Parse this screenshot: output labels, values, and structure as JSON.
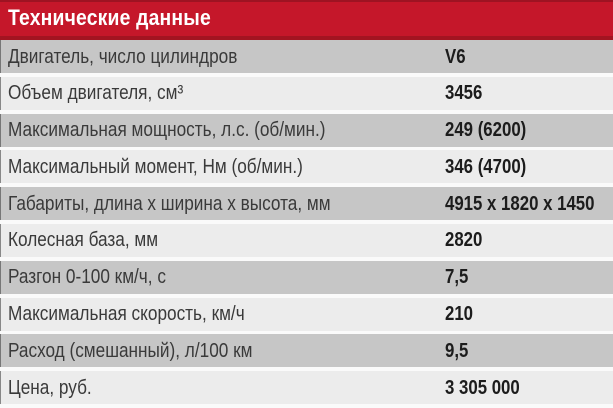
{
  "header": {
    "title": "Технические данные"
  },
  "table": {
    "rows": [
      {
        "label": "Двигатель, число цилиндров",
        "value": "V6"
      },
      {
        "label": "Объем двигателя, см³",
        "value": "3456"
      },
      {
        "label": "Максимальная мощность, л.с. (об/мин.)",
        "value": "249 (6200)"
      },
      {
        "label": "Максимальный момент, Нм (об/мин.)",
        "value": "346 (4700)"
      },
      {
        "label": "Габариты, длина x ширина x высота, мм",
        "value": "4915 x 1820 x 1450"
      },
      {
        "label": "Колесная база, мм",
        "value": "2820"
      },
      {
        "label": "Разгон 0-100 км/ч, с",
        "value": "7,5"
      },
      {
        "label": "Максимальная скорость, км/ч",
        "value": "210"
      },
      {
        "label": "Расход (смешанный), л/100 км",
        "value": "9,5"
      },
      {
        "label": "Цена, руб.",
        "value": "3 305 000"
      }
    ]
  },
  "chart_data": {
    "type": "table",
    "title": "Технические данные",
    "rows": [
      [
        "Двигатель, число цилиндров",
        "V6"
      ],
      [
        "Объем двигателя, см³",
        "3456"
      ],
      [
        "Максимальная мощность, л.с. (об/мин.)",
        "249 (6200)"
      ],
      [
        "Максимальный момент, Нм (об/мин.)",
        "346 (4700)"
      ],
      [
        "Габариты, длина x ширина x высота, мм",
        "4915 x 1820 x 1450"
      ],
      [
        "Колесная база, мм",
        "2820"
      ],
      [
        "Разгон 0-100 км/ч, с",
        "7,5"
      ],
      [
        "Максимальная скорость, км/ч",
        "210"
      ],
      [
        "Расход (смешанный), л/100 км",
        "9,5"
      ],
      [
        "Цена, руб.",
        "3 305 000"
      ]
    ],
    "layout": {
      "header_row_style": "red banner, white bold text",
      "zebra_striping": true
    }
  },
  "colors": {
    "header_bg": "#c5172a",
    "header_accent": "#9e1322",
    "header_accent2": "#a31421",
    "header_text": "#ffffff",
    "row_odd": "#c6c6c6",
    "row_even": "#ececec",
    "gap_color": "#fafafa",
    "label_text": "#3a3a3a",
    "value_text": "#1c1c1c"
  }
}
